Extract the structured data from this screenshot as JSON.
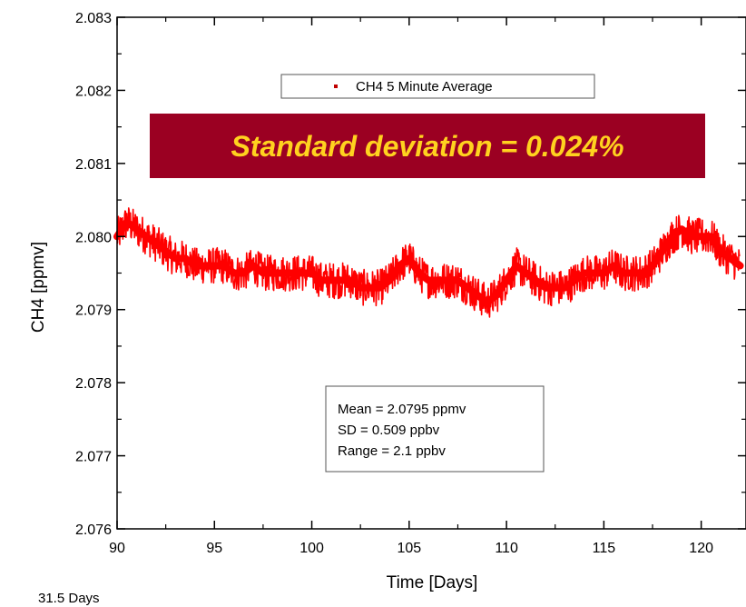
{
  "chart_data": {
    "type": "line",
    "title": "",
    "xlabel": "Time [Days]",
    "ylabel": "CH4 [ppmv]",
    "xlim": [
      90,
      122.3
    ],
    "ylim": [
      2.076,
      2.083
    ],
    "xticks": [
      90,
      95,
      100,
      105,
      110,
      115,
      120
    ],
    "yticks": [
      2.076,
      2.077,
      2.078,
      2.079,
      2.08,
      2.081,
      2.082,
      2.083
    ],
    "ytick_labels": [
      "2.076",
      "2.077",
      "2.078",
      "2.079",
      "2.080",
      "2.081",
      "2.082",
      "2.083"
    ],
    "grid": false,
    "legend_position": "top-center",
    "series": [
      {
        "name": "CH4 5 Minute Average",
        "color": "#ff0000",
        "x": [
          90.0,
          90.5,
          91.0,
          91.5,
          92.0,
          92.5,
          93.0,
          93.5,
          94.0,
          94.5,
          95.0,
          95.5,
          96.0,
          96.5,
          97.0,
          97.5,
          98.0,
          98.5,
          99.0,
          99.5,
          100.0,
          100.5,
          101.0,
          101.5,
          102.0,
          102.5,
          103.0,
          103.5,
          104.0,
          104.5,
          105.0,
          105.5,
          106.0,
          106.5,
          107.0,
          107.5,
          108.0,
          108.5,
          109.0,
          109.5,
          110.0,
          110.5,
          111.0,
          111.5,
          112.0,
          112.5,
          113.0,
          113.5,
          114.0,
          114.5,
          115.0,
          115.5,
          116.0,
          116.5,
          117.0,
          117.5,
          118.0,
          118.5,
          119.0,
          119.5,
          120.0,
          120.5,
          121.0,
          121.5,
          122.0
        ],
        "y": [
          2.08,
          2.0802,
          2.0801,
          2.08,
          2.0799,
          2.0798,
          2.0797,
          2.0797,
          2.0796,
          2.0796,
          2.0796,
          2.0796,
          2.0795,
          2.0795,
          2.0796,
          2.0795,
          2.0795,
          2.0795,
          2.0795,
          2.0795,
          2.0795,
          2.0794,
          2.0794,
          2.0794,
          2.0794,
          2.0793,
          2.0793,
          2.0793,
          2.0794,
          2.0796,
          2.0797,
          2.0795,
          2.0794,
          2.0794,
          2.0794,
          2.0794,
          2.0793,
          2.0792,
          2.0791,
          2.0792,
          2.0794,
          2.0796,
          2.0795,
          2.0794,
          2.0793,
          2.0793,
          2.0793,
          2.0794,
          2.0795,
          2.0795,
          2.0795,
          2.0796,
          2.0795,
          2.0795,
          2.0795,
          2.0796,
          2.0798,
          2.08,
          2.0801,
          2.08,
          2.08,
          2.08,
          2.0798,
          2.0797,
          2.0796
        ],
        "spread_ppmv": 0.0005
      }
    ]
  },
  "legend": {
    "label": "CH4 5 Minute Average"
  },
  "banner": {
    "text": "Standard deviation = 0.024%",
    "bg_color": "#9b0022",
    "text_color": "#ffd21f"
  },
  "stats": {
    "mean": "Mean  = 2.0795 ppmv",
    "sd": "SD = 0.509 ppbv",
    "range": "Range = 2.1 ppbv"
  },
  "footnote": "31.5 Days"
}
